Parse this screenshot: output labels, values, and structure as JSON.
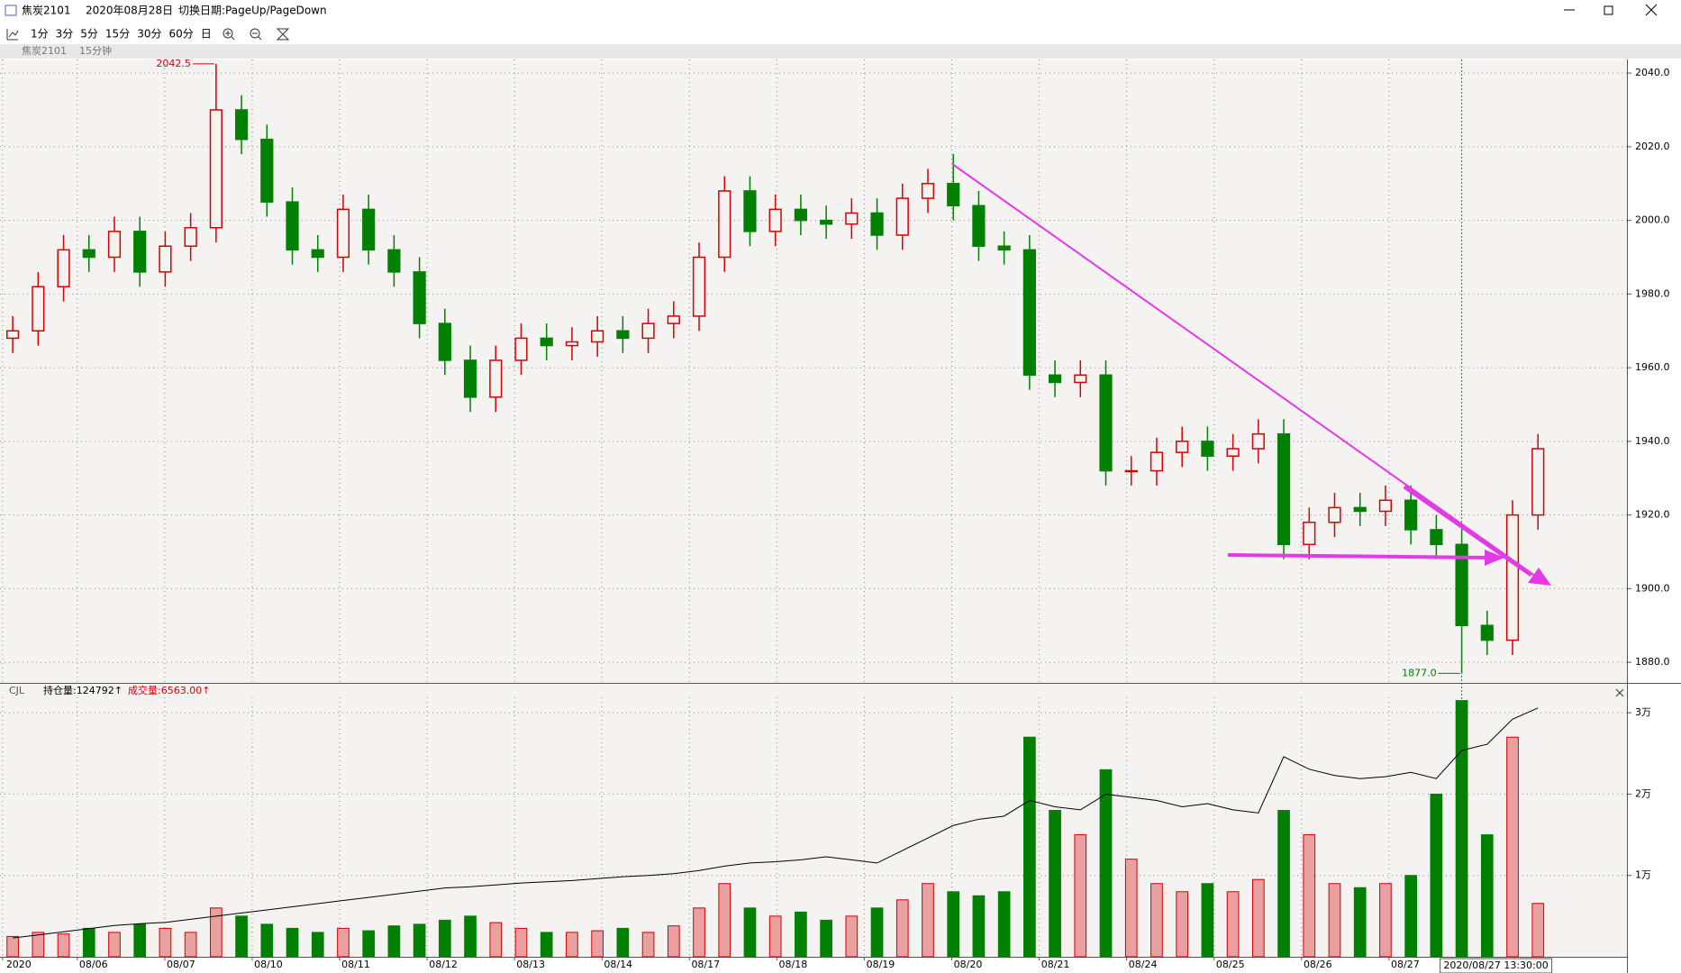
{
  "window": {
    "title": "焦炭2101",
    "date": "2020年08月28日",
    "hint": "切换日期:PageUp/PageDown"
  },
  "toolbar": [
    "1分",
    "3分",
    "5分",
    "15分",
    "30分",
    "60分",
    "日"
  ],
  "tab": {
    "symbol": "焦炭2101",
    "period": "15分钟"
  },
  "chart_data": [
    {
      "type": "candlestick",
      "open": [
        1968,
        1970,
        1982,
        1992,
        1990,
        1997,
        1986,
        1993,
        1998,
        2030,
        2022,
        2005,
        1992,
        1990,
        2003,
        1992,
        1986,
        1972,
        1962,
        1952,
        1962,
        1968,
        1966,
        1967,
        1970,
        1968,
        1972,
        1974,
        1990,
        2008,
        1997,
        2003,
        2000,
        1999,
        2002,
        1996,
        2006,
        2010,
        2004,
        1993,
        1992,
        1958,
        1956,
        1958,
        1932,
        1932,
        1937,
        1940,
        1936,
        1938,
        1942,
        1912,
        1918,
        1922,
        1921,
        1924,
        1916,
        1912,
        1890,
        1886,
        1920
      ],
      "high": [
        1974,
        1986,
        1996,
        1996,
        2001,
        2001,
        1997,
        2002,
        2042.5,
        2034,
        2026,
        2009,
        1996,
        2007,
        2007,
        1996,
        1990,
        1976,
        1966,
        1966,
        1972,
        1972,
        1971,
        1974,
        1974,
        1976,
        1978,
        1994,
        2012,
        2012,
        2007,
        2007,
        2004,
        2006,
        2006,
        2010,
        2014,
        2018,
        2008,
        1997,
        1996,
        1962,
        1962,
        1962,
        1936,
        1941,
        1944,
        1944,
        1942,
        1946,
        1946,
        1922,
        1926,
        1926,
        1928,
        1928,
        1920,
        1916,
        1894,
        1924,
        1942
      ],
      "low": [
        1964,
        1966,
        1978,
        1986,
        1986,
        1982,
        1982,
        1989,
        1994,
        2018,
        2001,
        1988,
        1986,
        1986,
        1988,
        1982,
        1968,
        1958,
        1948,
        1948,
        1958,
        1962,
        1962,
        1963,
        1964,
        1964,
        1968,
        1970,
        1986,
        1993,
        1993,
        1996,
        1995,
        1995,
        1992,
        1992,
        2002,
        2000,
        1989,
        1988,
        1954,
        1952,
        1952,
        1928,
        1928,
        1928,
        1933,
        1932,
        1932,
        1934,
        1908,
        1908,
        1914,
        1917,
        1917,
        1912,
        1908,
        1877,
        1882,
        1882,
        1916
      ],
      "close": [
        1970,
        1982,
        1992,
        1990,
        1997,
        1986,
        1993,
        1998,
        2030,
        2022,
        2005,
        1992,
        1990,
        2003,
        1992,
        1986,
        1972,
        1962,
        1952,
        1962,
        1968,
        1966,
        1967,
        1970,
        1968,
        1972,
        1974,
        1990,
        2008,
        1997,
        2003,
        2000,
        1999,
        2002,
        1996,
        2006,
        2010,
        2004,
        1993,
        1992,
        1958,
        1956,
        1958,
        1932,
        1932,
        1937,
        1940,
        1936,
        1938,
        1942,
        1912,
        1918,
        1922,
        1921,
        1924,
        1916,
        1912,
        1890,
        1886,
        1920,
        1938
      ],
      "up_color": "#d40000",
      "down_color": "#008000",
      "ylim": [
        1874.4,
        2043.7
      ],
      "yticks": [
        {
          "value": 1880,
          "label": "1880.0"
        },
        {
          "value": 1900,
          "label": "1900.0"
        },
        {
          "value": 1920,
          "label": "1920.0"
        },
        {
          "value": 1940,
          "label": "1940.0"
        },
        {
          "value": 1960,
          "label": "1960.0"
        },
        {
          "value": 1980,
          "label": "1980.0"
        },
        {
          "value": 2000,
          "label": "2000.0"
        },
        {
          "value": 2020,
          "label": "2020.0"
        },
        {
          "value": 2040,
          "label": "2040.0"
        }
      ],
      "grid": true,
      "extreme_labels": {
        "max": "2042.5",
        "min": "1877.0"
      }
    },
    {
      "type": "bar",
      "indicator": "CJL",
      "readouts": [
        {
          "label": "持仓量:124792↑",
          "value": 124792
        },
        {
          "label": "成交量:6563.00↑",
          "value": 6563
        }
      ],
      "series": [
        {
          "values": [
            2500,
            3000,
            2800,
            3500,
            3000,
            4000,
            3500,
            3000,
            6000,
            5000,
            4000,
            3500,
            3000,
            3500,
            3200,
            3800,
            4000,
            4500,
            5000,
            4200,
            3500,
            3000,
            3000,
            3200,
            3500,
            3000,
            3800,
            6000,
            9000,
            6000,
            5000,
            5500,
            4500,
            5000,
            6000,
            7000,
            9000,
            8000,
            7500,
            8000,
            27000,
            18000,
            15000,
            23000,
            12000,
            9000,
            8000,
            9000,
            8000,
            9500,
            18000,
            15000,
            9000,
            8500,
            9000,
            10000,
            20000,
            31500,
            15000,
            27000,
            6563
          ]
        },
        {
          "color": "#000000",
          "axis": "y2",
          "values": [
            88000,
            88500,
            89000,
            89500,
            90000,
            90300,
            90500,
            91000,
            91500,
            92000,
            92500,
            93000,
            93500,
            94000,
            94500,
            95000,
            95500,
            96000,
            96200,
            96500,
            96800,
            97000,
            97200,
            97500,
            97800,
            98000,
            98300,
            98800,
            99500,
            100000,
            100200,
            100500,
            101000,
            100500,
            100000,
            102000,
            104000,
            106000,
            107000,
            107500,
            110000,
            109000,
            108500,
            111000,
            110500,
            110000,
            109000,
            109500,
            108500,
            108000,
            117000,
            115000,
            114000,
            113500,
            113800,
            114500,
            113500,
            118000,
            119000,
            123000,
            124792
          ]
        }
      ],
      "ylim": [
        0,
        31900
      ],
      "yticks": [
        {
          "value": 10000,
          "label": "1万"
        },
        {
          "value": 20000,
          "label": "2万"
        },
        {
          "value": 30000,
          "label": "3万"
        }
      ],
      "y2lim": [
        85000,
        126500
      ],
      "xlim": [
        -0.5,
        63.5
      ],
      "xticks": [
        {
          "value": -0.4,
          "label": "2020"
        },
        {
          "value": 2.54,
          "label": "08/06"
        },
        {
          "value": 5.98,
          "label": "08/07"
        },
        {
          "value": 9.42,
          "label": "08/10"
        },
        {
          "value": 12.86,
          "label": "08/11"
        },
        {
          "value": 16.3,
          "label": "08/12"
        },
        {
          "value": 19.74,
          "label": "08/13"
        },
        {
          "value": 23.18,
          "label": "08/14"
        },
        {
          "value": 26.62,
          "label": "08/17"
        },
        {
          "value": 30.06,
          "label": "08/18"
        },
        {
          "value": 33.5,
          "label": "08/19"
        },
        {
          "value": 36.94,
          "label": "08/20"
        },
        {
          "value": 40.38,
          "label": "08/21"
        },
        {
          "value": 43.82,
          "label": "08/24"
        },
        {
          "value": 47.26,
          "label": "08/25"
        },
        {
          "value": 50.7,
          "label": "08/26"
        },
        {
          "value": 54.14,
          "label": "08/27"
        }
      ],
      "grid": true,
      "cursor_label": "2020/08/27 13:30:00"
    }
  ]
}
